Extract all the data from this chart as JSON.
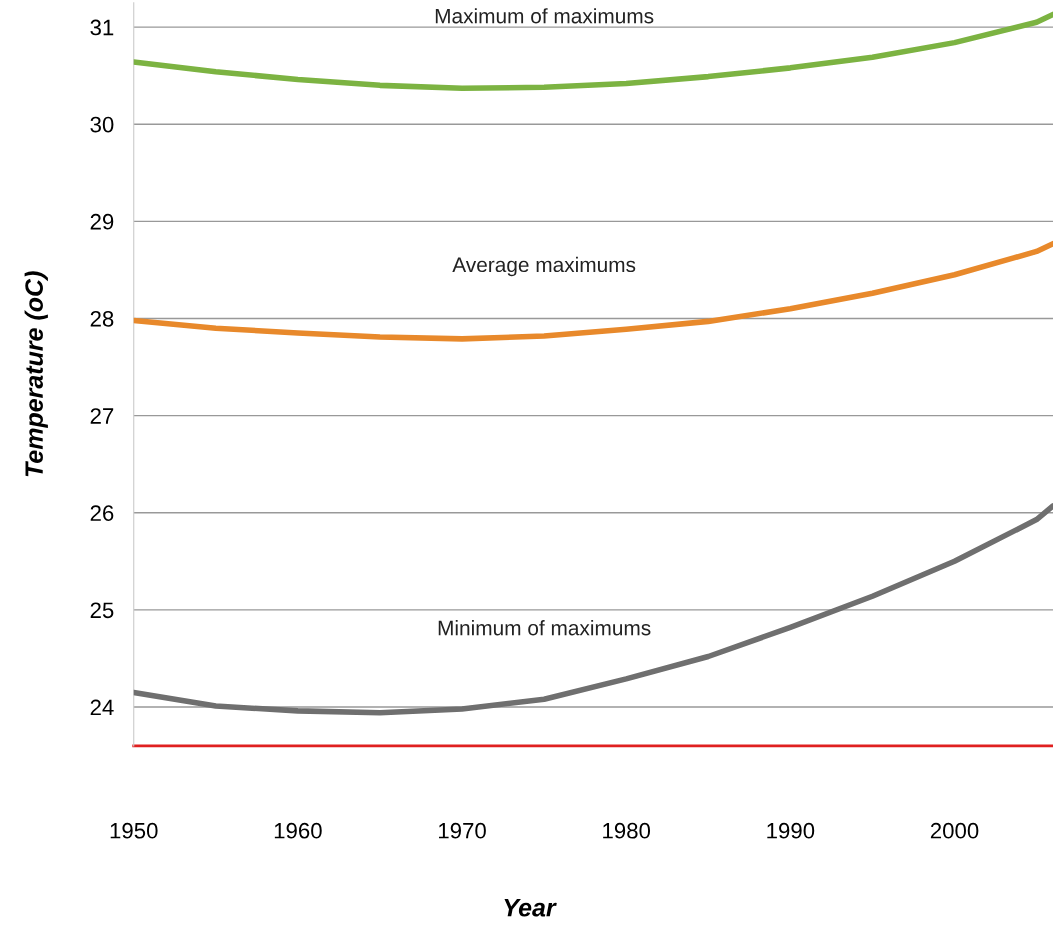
{
  "chart_data": {
    "type": "line",
    "xlabel": "Year",
    "ylabel": "Temperature (oC)",
    "x": [
      1950,
      1955,
      1960,
      1965,
      1970,
      1975,
      1980,
      1985,
      1990,
      1995,
      2000,
      2005,
      2006
    ],
    "series": [
      {
        "name": "Maximum of maximums",
        "color": "#7cb342",
        "values": [
          30.64,
          30.54,
          30.46,
          30.4,
          30.37,
          30.38,
          30.42,
          30.49,
          30.58,
          30.69,
          30.84,
          31.05,
          31.13
        ]
      },
      {
        "name": "Average maximums",
        "color": "#e8892b",
        "values": [
          27.98,
          27.9,
          27.85,
          27.81,
          27.79,
          27.82,
          27.89,
          27.97,
          28.1,
          28.26,
          28.45,
          28.69,
          28.77
        ]
      },
      {
        "name": "Minimum of maximums",
        "color": "#6f6f6f",
        "values": [
          24.15,
          24.01,
          23.96,
          23.94,
          23.98,
          24.08,
          24.29,
          24.52,
          24.82,
          25.14,
          25.5,
          25.93,
          26.07
        ]
      }
    ],
    "xlim": [
      1950,
      2006
    ],
    "ylim": [
      23.6,
      31.25
    ],
    "xticks": [
      1950,
      1960,
      1970,
      1980,
      1990,
      2000
    ],
    "yticks": [
      24,
      25,
      26,
      27,
      28,
      29,
      30,
      31
    ],
    "ref_lines": [
      {
        "axis": "y",
        "value": 23.6,
        "color": "#e02020"
      }
    ],
    "grid": "y",
    "legend": false
  }
}
